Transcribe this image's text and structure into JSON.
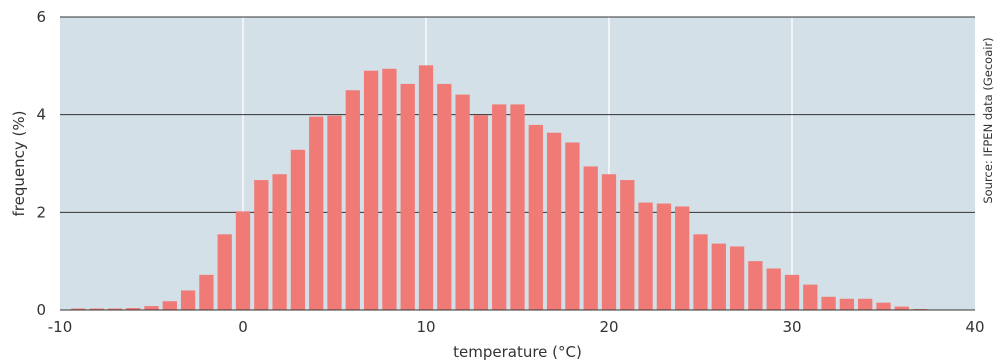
{
  "chart_data": {
    "type": "bar",
    "xlabel": "temperature (°C)",
    "ylabel": "frequency (%)",
    "source": "Source: IFPEN data (Gecoair)",
    "xlim": [
      -10,
      40
    ],
    "ylim": [
      0,
      6
    ],
    "xticks": [
      "-10",
      "0",
      "10",
      "20",
      "30",
      "40"
    ],
    "yticks": [
      "0",
      "2",
      "4",
      "6"
    ],
    "x": [
      -9,
      -8,
      -7,
      -6,
      -5,
      -4,
      -3,
      -2,
      -1,
      0,
      1,
      2,
      3,
      4,
      5,
      6,
      7,
      8,
      9,
      10,
      11,
      12,
      13,
      14,
      15,
      16,
      17,
      18,
      19,
      20,
      21,
      22,
      23,
      24,
      25,
      26,
      27,
      28,
      29,
      30,
      31,
      32,
      33,
      34,
      35,
      36,
      37
    ],
    "values": [
      0.03,
      0.03,
      0.03,
      0.04,
      0.08,
      0.18,
      0.4,
      0.72,
      1.55,
      2.02,
      2.66,
      2.78,
      3.28,
      3.96,
      3.98,
      4.5,
      4.9,
      4.94,
      4.63,
      5.01,
      4.63,
      4.41,
      3.99,
      4.21,
      4.21,
      3.79,
      3.63,
      3.43,
      2.94,
      2.78,
      2.66,
      2.2,
      2.18,
      2.12,
      1.55,
      1.36,
      1.3,
      1.0,
      0.85,
      0.72,
      0.52,
      0.27,
      0.23,
      0.23,
      0.15,
      0.07,
      0.02
    ],
    "grid": "y-major dark, x-major light",
    "colors": {
      "bar": "#f07a76",
      "plot_bg": "#d3e0e7",
      "grid_y": "#333333",
      "grid_x": "#ffffff",
      "text": "#333333"
    }
  }
}
